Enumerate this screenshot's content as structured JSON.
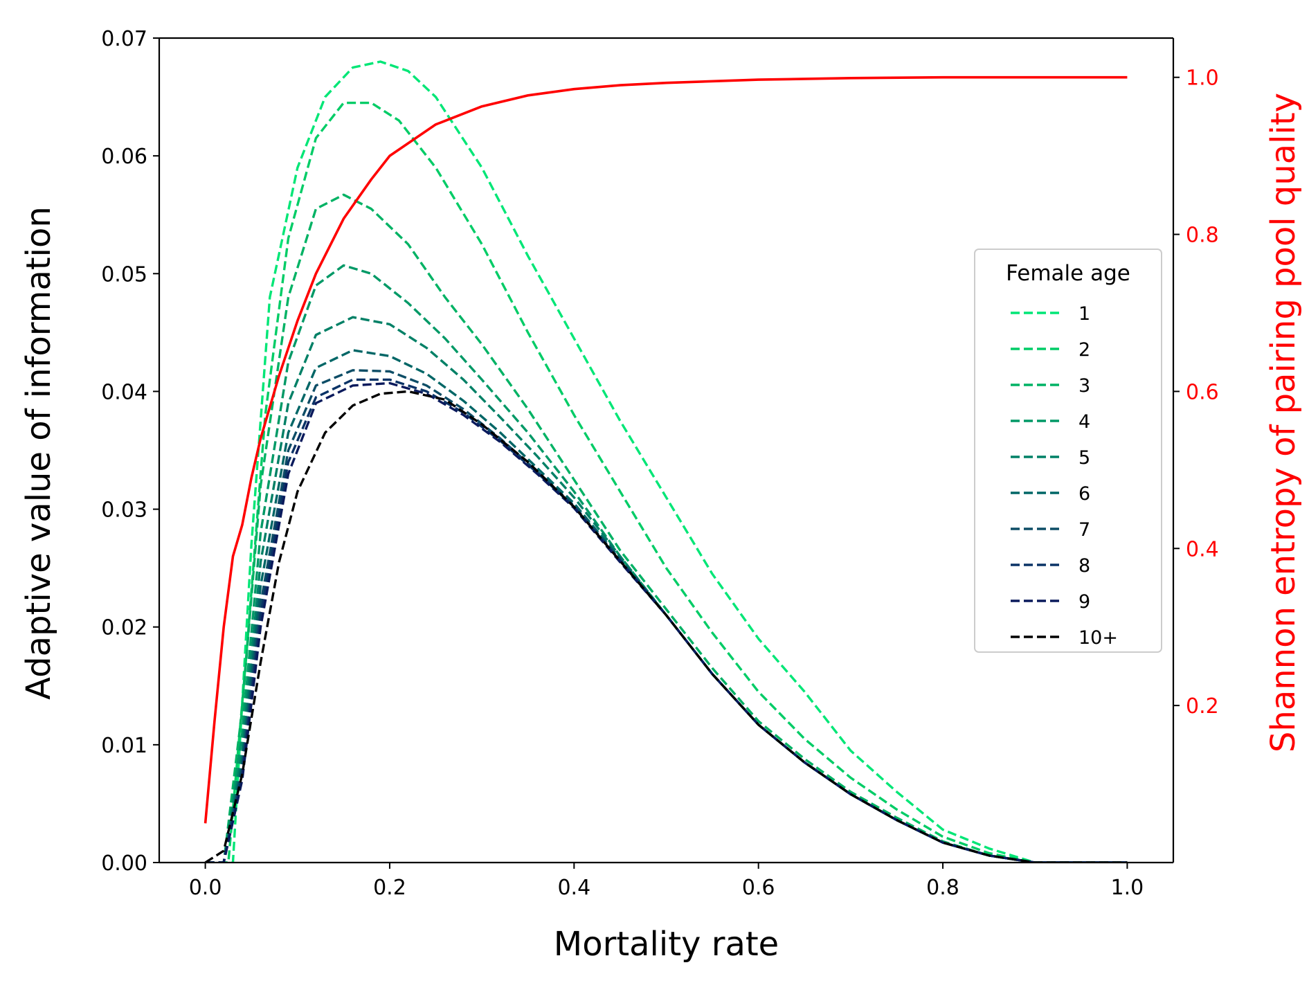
{
  "chart_data": {
    "type": "line",
    "title": "",
    "xlabel": "Mortality rate",
    "ylabel": "Adaptive value of information",
    "y2label": "Shannon entropy of pairing pool quality",
    "xlim": [
      -0.05,
      1.05
    ],
    "ylim": [
      0,
      0.07
    ],
    "y2lim": [
      0.0,
      1.05
    ],
    "xticks": [
      "0.0",
      "0.2",
      "0.4",
      "0.6",
      "0.8",
      "1.0"
    ],
    "yticks": [
      "0.00",
      "0.01",
      "0.02",
      "0.03",
      "0.04",
      "0.05",
      "0.06",
      "0.07"
    ],
    "y2ticks": [
      "0.2",
      "0.4",
      "0.6",
      "0.8",
      "1.0"
    ],
    "grid": false,
    "right_axis_color": "#ff0000",
    "legend": {
      "title": "Female age",
      "placement": "center-right"
    },
    "series": [
      {
        "name": "1",
        "axis": "left",
        "style": "dashed",
        "color": "#00e676",
        "x": [
          0.0,
          0.03,
          0.05,
          0.07,
          0.1,
          0.13,
          0.16,
          0.19,
          0.22,
          0.25,
          0.3,
          0.35,
          0.4,
          0.45,
          0.5,
          0.55,
          0.6,
          0.65,
          0.7,
          0.75,
          0.8,
          0.85,
          0.9,
          0.95,
          1.0
        ],
        "values": [
          0,
          0,
          0.027,
          0.048,
          0.059,
          0.065,
          0.0675,
          0.068,
          0.0672,
          0.065,
          0.059,
          0.0515,
          0.0445,
          0.0375,
          0.031,
          0.0245,
          0.019,
          0.0145,
          0.0095,
          0.006,
          0.0028,
          0.0012,
          0,
          0,
          0
        ]
      },
      {
        "name": "2",
        "axis": "left",
        "style": "dashed",
        "color": "#00cc66",
        "x": [
          0.0,
          0.025,
          0.045,
          0.065,
          0.09,
          0.12,
          0.15,
          0.18,
          0.21,
          0.25,
          0.3,
          0.35,
          0.4,
          0.45,
          0.5,
          0.55,
          0.6,
          0.65,
          0.7,
          0.75,
          0.8,
          0.85,
          0.9,
          0.95,
          1.0
        ],
        "values": [
          0,
          0,
          0.018,
          0.038,
          0.053,
          0.0615,
          0.0645,
          0.0645,
          0.063,
          0.059,
          0.0525,
          0.045,
          0.038,
          0.0315,
          0.025,
          0.0195,
          0.0145,
          0.0105,
          0.0072,
          0.0045,
          0.0022,
          0.0008,
          0,
          0,
          0
        ]
      },
      {
        "name": "3",
        "axis": "left",
        "style": "dashed",
        "color": "#00b264",
        "x": [
          0.0,
          0.02,
          0.04,
          0.06,
          0.09,
          0.12,
          0.15,
          0.18,
          0.22,
          0.26,
          0.3,
          0.35,
          0.4,
          0.45,
          0.5,
          0.55,
          0.6,
          0.65,
          0.7,
          0.75,
          0.8,
          0.85,
          0.9,
          0.95,
          1.0
        ],
        "values": [
          0,
          0,
          0.013,
          0.032,
          0.048,
          0.0555,
          0.0567,
          0.0555,
          0.0525,
          0.048,
          0.044,
          0.0385,
          0.0325,
          0.0265,
          0.0215,
          0.0165,
          0.012,
          0.0088,
          0.006,
          0.0038,
          0.0018,
          0.0006,
          0,
          0,
          0
        ]
      },
      {
        "name": "4",
        "axis": "left",
        "style": "dashed",
        "color": "#009966",
        "x": [
          0.0,
          0.02,
          0.04,
          0.06,
          0.09,
          0.12,
          0.15,
          0.18,
          0.22,
          0.26,
          0.3,
          0.35,
          0.4,
          0.45,
          0.5,
          0.55,
          0.6,
          0.65,
          0.7,
          0.75,
          0.8,
          0.85,
          0.9,
          0.95,
          1.0
        ],
        "values": [
          0,
          0,
          0.011,
          0.028,
          0.0425,
          0.049,
          0.0507,
          0.05,
          0.0475,
          0.0445,
          0.041,
          0.0365,
          0.0315,
          0.026,
          0.021,
          0.016,
          0.0117,
          0.0085,
          0.0058,
          0.0036,
          0.0017,
          0.0006,
          0,
          0,
          0
        ]
      },
      {
        "name": "5",
        "axis": "left",
        "style": "dashed",
        "color": "#008066",
        "x": [
          0.0,
          0.02,
          0.04,
          0.06,
          0.09,
          0.12,
          0.16,
          0.2,
          0.24,
          0.28,
          0.32,
          0.36,
          0.4,
          0.45,
          0.5,
          0.55,
          0.6,
          0.65,
          0.7,
          0.75,
          0.8,
          0.85,
          0.9,
          0.95,
          1.0
        ],
        "values": [
          0,
          0,
          0.0095,
          0.0255,
          0.039,
          0.0448,
          0.0463,
          0.0457,
          0.0437,
          0.041,
          0.0378,
          0.0345,
          0.031,
          0.026,
          0.021,
          0.016,
          0.0117,
          0.0085,
          0.0058,
          0.0036,
          0.0017,
          0.0006,
          0,
          0,
          0
        ]
      },
      {
        "name": "6",
        "axis": "left",
        "style": "dashed",
        "color": "#006666",
        "x": [
          0.0,
          0.02,
          0.04,
          0.06,
          0.09,
          0.12,
          0.16,
          0.2,
          0.24,
          0.28,
          0.32,
          0.36,
          0.4,
          0.45,
          0.5,
          0.55,
          0.6,
          0.65,
          0.7,
          0.75,
          0.8,
          0.85,
          0.9,
          0.95,
          1.0
        ],
        "values": [
          0,
          0,
          0.0085,
          0.0235,
          0.0365,
          0.042,
          0.0435,
          0.043,
          0.0415,
          0.0392,
          0.0365,
          0.0335,
          0.0305,
          0.0258,
          0.021,
          0.016,
          0.0117,
          0.0085,
          0.0058,
          0.0036,
          0.0017,
          0.0006,
          0,
          0,
          0
        ]
      },
      {
        "name": "7",
        "axis": "left",
        "style": "dashed",
        "color": "#0d4d66",
        "x": [
          0.0,
          0.02,
          0.04,
          0.06,
          0.09,
          0.12,
          0.16,
          0.2,
          0.24,
          0.28,
          0.32,
          0.36,
          0.4,
          0.45,
          0.5,
          0.55,
          0.6,
          0.65,
          0.7,
          0.75,
          0.8,
          0.85,
          0.9,
          0.95,
          1.0
        ],
        "values": [
          0,
          0,
          0.008,
          0.022,
          0.035,
          0.0405,
          0.0418,
          0.0417,
          0.0405,
          0.0385,
          0.036,
          0.0332,
          0.0303,
          0.0257,
          0.021,
          0.016,
          0.0117,
          0.0085,
          0.0058,
          0.0036,
          0.0017,
          0.0006,
          0,
          0,
          0
        ]
      },
      {
        "name": "8",
        "axis": "left",
        "style": "dashed",
        "color": "#0a3366",
        "x": [
          0.0,
          0.02,
          0.04,
          0.06,
          0.09,
          0.12,
          0.16,
          0.2,
          0.24,
          0.28,
          0.32,
          0.36,
          0.4,
          0.45,
          0.5,
          0.55,
          0.6,
          0.65,
          0.7,
          0.75,
          0.8,
          0.85,
          0.9,
          0.95,
          1.0
        ],
        "values": [
          0,
          0,
          0.0075,
          0.021,
          0.034,
          0.0395,
          0.041,
          0.041,
          0.04,
          0.0382,
          0.0358,
          0.0331,
          0.0302,
          0.0256,
          0.021,
          0.016,
          0.0117,
          0.0085,
          0.0058,
          0.0036,
          0.0017,
          0.0006,
          0,
          0,
          0
        ]
      },
      {
        "name": "9",
        "axis": "left",
        "style": "dashed",
        "color": "#0a1a5c",
        "x": [
          0.0,
          0.02,
          0.04,
          0.06,
          0.09,
          0.12,
          0.16,
          0.2,
          0.24,
          0.28,
          0.32,
          0.36,
          0.4,
          0.45,
          0.5,
          0.55,
          0.6,
          0.65,
          0.7,
          0.75,
          0.8,
          0.85,
          0.9,
          0.95,
          1.0
        ],
        "values": [
          0,
          0,
          0.007,
          0.02,
          0.033,
          0.039,
          0.0405,
          0.0407,
          0.0398,
          0.038,
          0.0357,
          0.033,
          0.0301,
          0.0255,
          0.021,
          0.016,
          0.0117,
          0.0085,
          0.0058,
          0.0036,
          0.0017,
          0.0006,
          0,
          0,
          0
        ]
      },
      {
        "name": "10+",
        "axis": "left",
        "style": "dashed",
        "color": "#000000",
        "x": [
          0.0,
          0.02,
          0.04,
          0.06,
          0.08,
          0.1,
          0.13,
          0.16,
          0.19,
          0.22,
          0.26,
          0.3,
          0.35,
          0.4,
          0.45,
          0.5,
          0.55,
          0.6,
          0.65,
          0.7,
          0.75,
          0.8,
          0.85,
          0.9,
          1.0
        ],
        "values": [
          0,
          0.001,
          0.0075,
          0.017,
          0.0255,
          0.0315,
          0.0365,
          0.0388,
          0.0398,
          0.04,
          0.0393,
          0.0372,
          0.034,
          0.0302,
          0.0256,
          0.021,
          0.016,
          0.0117,
          0.0085,
          0.0058,
          0.0036,
          0.0017,
          0.0006,
          0,
          0
        ]
      },
      {
        "name": "Shannon entropy",
        "axis": "right",
        "style": "solid",
        "color": "#ff0000",
        "show_in_legend": false,
        "x": [
          0.0,
          0.01,
          0.02,
          0.03,
          0.04,
          0.05,
          0.06,
          0.08,
          0.1,
          0.12,
          0.15,
          0.18,
          0.2,
          0.25,
          0.3,
          0.35,
          0.4,
          0.45,
          0.5,
          0.6,
          0.7,
          0.8,
          0.9,
          1.0
        ],
        "values": [
          0.05,
          0.18,
          0.3,
          0.39,
          0.43,
          0.49,
          0.54,
          0.62,
          0.69,
          0.75,
          0.82,
          0.87,
          0.9,
          0.94,
          0.963,
          0.977,
          0.985,
          0.99,
          0.993,
          0.997,
          0.999,
          1.0,
          1.0,
          1.0
        ]
      }
    ]
  }
}
